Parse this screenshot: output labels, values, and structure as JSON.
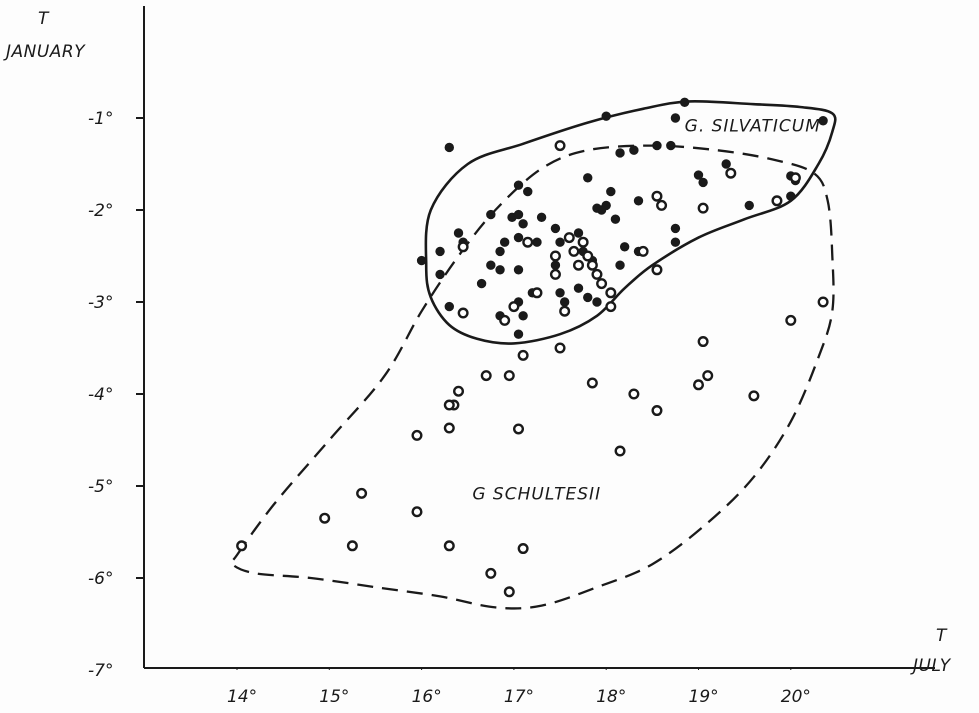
{
  "chart_data": {
    "type": "scatter",
    "x_axis": {
      "title_top": "T",
      "title_bottom": "JULY",
      "range": [
        13.85,
        20.75
      ],
      "ticks": [
        {
          "value": 14,
          "label": "14°"
        },
        {
          "value": 15,
          "label": "15°"
        },
        {
          "value": 16,
          "label": "16°"
        },
        {
          "value": 17,
          "label": "17°"
        },
        {
          "value": 18,
          "label": "18°"
        },
        {
          "value": 19,
          "label": "19°"
        },
        {
          "value": 20,
          "label": "20°"
        }
      ]
    },
    "y_axis": {
      "title_top": "T",
      "title_bottom": "JANUARY",
      "range": [
        -7,
        0.2
      ],
      "ticks": [
        {
          "value": -1,
          "label": "-1°"
        },
        {
          "value": -2,
          "label": "-2°"
        },
        {
          "value": -3,
          "label": "-3°"
        },
        {
          "value": -4,
          "label": "-4°"
        },
        {
          "value": -5,
          "label": "-5°"
        },
        {
          "value": -6,
          "label": "-6°"
        },
        {
          "value": -7,
          "label": "-7°"
        }
      ]
    },
    "grid": false,
    "legend": "none",
    "colors": {
      "ink": "#1a1a1a"
    },
    "regions": [
      {
        "name": "G. SILVATICUM",
        "style": "solid",
        "label_at": [
          18.85,
          -1.08
        ],
        "outline": [
          [
            16.05,
            -2.6
          ],
          [
            16.1,
            -2.0
          ],
          [
            16.5,
            -1.5
          ],
          [
            17.1,
            -1.28
          ],
          [
            17.8,
            -1.05
          ],
          [
            18.4,
            -0.9
          ],
          [
            18.9,
            -0.82
          ],
          [
            19.6,
            -0.85
          ],
          [
            20.1,
            -0.88
          ],
          [
            20.45,
            -0.95
          ],
          [
            20.45,
            -1.15
          ],
          [
            20.3,
            -1.5
          ],
          [
            20.0,
            -1.9
          ],
          [
            19.5,
            -2.1
          ],
          [
            19.0,
            -2.3
          ],
          [
            18.5,
            -2.6
          ],
          [
            18.2,
            -2.85
          ],
          [
            17.9,
            -3.15
          ],
          [
            17.5,
            -3.35
          ],
          [
            17.0,
            -3.45
          ],
          [
            16.6,
            -3.4
          ],
          [
            16.3,
            -3.25
          ],
          [
            16.1,
            -2.95
          ]
        ]
      },
      {
        "name": "G SCHULTESII",
        "style": "dashed",
        "label_at": [
          16.55,
          -5.08
        ],
        "outline": [
          [
            14.0,
            -5.75
          ],
          [
            14.4,
            -5.2
          ],
          [
            15.0,
            -4.5
          ],
          [
            15.6,
            -3.8
          ],
          [
            16.0,
            -3.1
          ],
          [
            16.4,
            -2.5
          ],
          [
            16.8,
            -2.0
          ],
          [
            17.3,
            -1.55
          ],
          [
            17.8,
            -1.35
          ],
          [
            18.5,
            -1.3
          ],
          [
            19.2,
            -1.35
          ],
          [
            19.8,
            -1.45
          ],
          [
            20.25,
            -1.6
          ],
          [
            20.4,
            -1.9
          ],
          [
            20.45,
            -2.5
          ],
          [
            20.45,
            -3.1
          ],
          [
            20.3,
            -3.6
          ],
          [
            20.0,
            -4.3
          ],
          [
            19.6,
            -4.9
          ],
          [
            19.1,
            -5.4
          ],
          [
            18.5,
            -5.85
          ],
          [
            17.9,
            -6.1
          ],
          [
            17.3,
            -6.3
          ],
          [
            16.8,
            -6.32
          ],
          [
            16.2,
            -6.2
          ],
          [
            15.5,
            -6.1
          ],
          [
            14.8,
            -6.0
          ],
          [
            14.2,
            -5.95
          ],
          [
            13.95,
            -5.85
          ]
        ]
      }
    ],
    "series": [
      {
        "marker": "filled",
        "points": [
          [
            18.0,
            -0.98
          ],
          [
            18.85,
            -0.83
          ],
          [
            18.75,
            -1.0
          ],
          [
            20.35,
            -1.03
          ],
          [
            16.3,
            -1.32
          ],
          [
            18.15,
            -1.38
          ],
          [
            18.3,
            -1.35
          ],
          [
            18.55,
            -1.3
          ],
          [
            18.7,
            -1.3
          ],
          [
            17.8,
            -1.65
          ],
          [
            19.0,
            -1.62
          ],
          [
            19.05,
            -1.7
          ],
          [
            19.3,
            -1.5
          ],
          [
            20.0,
            -1.63
          ],
          [
            20.05,
            -1.68
          ],
          [
            17.05,
            -1.73
          ],
          [
            17.15,
            -1.8
          ],
          [
            18.05,
            -1.8
          ],
          [
            18.0,
            -1.95
          ],
          [
            17.95,
            -2.0
          ],
          [
            17.9,
            -1.98
          ],
          [
            18.35,
            -1.9
          ],
          [
            19.55,
            -1.95
          ],
          [
            20.0,
            -1.85
          ],
          [
            16.75,
            -2.05
          ],
          [
            16.98,
            -2.08
          ],
          [
            17.05,
            -2.05
          ],
          [
            17.3,
            -2.08
          ],
          [
            17.1,
            -2.15
          ],
          [
            16.9,
            -2.35
          ],
          [
            17.05,
            -2.3
          ],
          [
            17.25,
            -2.35
          ],
          [
            17.45,
            -2.2
          ],
          [
            17.7,
            -2.25
          ],
          [
            18.1,
            -2.1
          ],
          [
            18.75,
            -2.2
          ],
          [
            18.75,
            -2.35
          ],
          [
            16.2,
            -2.45
          ],
          [
            16.4,
            -2.25
          ],
          [
            16.45,
            -2.35
          ],
          [
            16.85,
            -2.45
          ],
          [
            17.5,
            -2.35
          ],
          [
            17.75,
            -2.45
          ],
          [
            18.2,
            -2.4
          ],
          [
            18.35,
            -2.45
          ],
          [
            16.0,
            -2.55
          ],
          [
            16.2,
            -2.7
          ],
          [
            16.75,
            -2.6
          ],
          [
            16.85,
            -2.65
          ],
          [
            17.05,
            -2.65
          ],
          [
            17.45,
            -2.6
          ],
          [
            17.85,
            -2.55
          ],
          [
            18.15,
            -2.6
          ],
          [
            16.65,
            -2.8
          ],
          [
            17.2,
            -2.9
          ],
          [
            17.5,
            -2.9
          ],
          [
            17.7,
            -2.85
          ],
          [
            17.8,
            -2.95
          ],
          [
            17.9,
            -3.0
          ],
          [
            17.55,
            -3.0
          ],
          [
            16.3,
            -3.05
          ],
          [
            16.85,
            -3.15
          ],
          [
            17.05,
            -3.0
          ],
          [
            17.1,
            -3.15
          ],
          [
            17.05,
            -3.35
          ]
        ]
      },
      {
        "marker": "open",
        "points": [
          [
            17.5,
            -1.3
          ],
          [
            18.55,
            -1.85
          ],
          [
            18.6,
            -1.95
          ],
          [
            19.35,
            -1.6
          ],
          [
            19.85,
            -1.9
          ],
          [
            19.05,
            -1.98
          ],
          [
            20.05,
            -1.65
          ],
          [
            16.45,
            -2.4
          ],
          [
            17.15,
            -2.35
          ],
          [
            17.45,
            -2.5
          ],
          [
            17.6,
            -2.3
          ],
          [
            17.75,
            -2.35
          ],
          [
            17.65,
            -2.45
          ],
          [
            17.8,
            -2.5
          ],
          [
            17.7,
            -2.6
          ],
          [
            17.85,
            -2.6
          ],
          [
            17.9,
            -2.7
          ],
          [
            17.95,
            -2.8
          ],
          [
            18.4,
            -2.45
          ],
          [
            18.55,
            -2.65
          ],
          [
            17.45,
            -2.7
          ],
          [
            17.25,
            -2.9
          ],
          [
            18.05,
            -2.9
          ],
          [
            17.0,
            -3.05
          ],
          [
            17.55,
            -3.1
          ],
          [
            16.45,
            -3.12
          ],
          [
            16.9,
            -3.2
          ],
          [
            18.05,
            -3.05
          ],
          [
            20.35,
            -3.0
          ],
          [
            20.0,
            -3.2
          ],
          [
            17.1,
            -3.58
          ],
          [
            17.5,
            -3.5
          ],
          [
            19.05,
            -3.43
          ],
          [
            16.7,
            -3.8
          ],
          [
            16.95,
            -3.8
          ],
          [
            17.85,
            -3.88
          ],
          [
            18.3,
            -4.0
          ],
          [
            19.0,
            -3.9
          ],
          [
            19.1,
            -3.8
          ],
          [
            16.4,
            -3.97
          ],
          [
            16.35,
            -4.12
          ],
          [
            16.3,
            -4.12
          ],
          [
            18.55,
            -4.18
          ],
          [
            19.6,
            -4.02
          ],
          [
            16.3,
            -4.37
          ],
          [
            15.95,
            -4.45
          ],
          [
            17.05,
            -4.38
          ],
          [
            18.15,
            -4.62
          ],
          [
            15.35,
            -5.08
          ],
          [
            14.95,
            -5.35
          ],
          [
            15.95,
            -5.28
          ],
          [
            14.05,
            -5.65
          ],
          [
            15.25,
            -5.65
          ],
          [
            16.3,
            -5.65
          ],
          [
            17.1,
            -5.68
          ],
          [
            16.75,
            -5.95
          ],
          [
            16.95,
            -6.15
          ]
        ]
      }
    ]
  }
}
